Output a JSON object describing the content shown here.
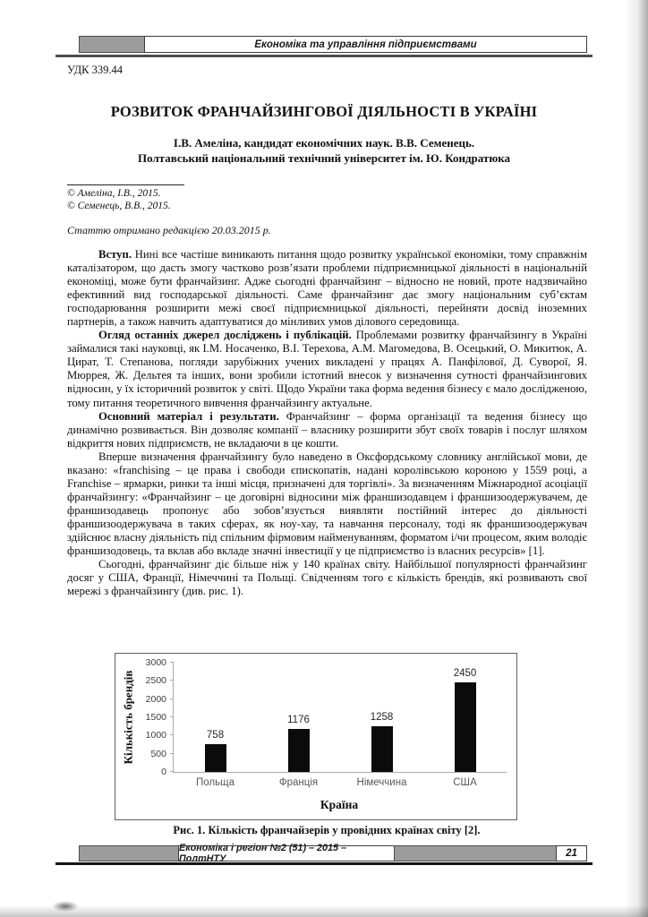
{
  "header": {
    "section": "Економіка та управління підприємствами"
  },
  "udc": "УДК 339.44",
  "title": "РОЗВИТОК ФРАНЧАЙЗИНГОВОЇ ДІЯЛЬНОСТІ В УКРАЇНІ",
  "authors": {
    "line1": "І.В. Амеліна, кандидат економічних наук. В.В. Семенець.",
    "line2": "Полтавський національний технічний університет ім. Ю. Кондратюка"
  },
  "copyright": [
    "© Амеліна, І.В., 2015.",
    "© Семенець, В.В., 2015."
  ],
  "received": "Статтю отримано редакцією 20.03.2015 р.",
  "paragraphs": [
    {
      "lead": "Вступ.",
      "text": " Нині все частіше виникають питання щодо розвитку української економіки, тому справжнім каталізатором, що дасть змогу частково розв’язати проблеми підприємницької діяльності в національній економіці, може бути франчайзинг. Адже сьогодні франчайзинг – відносно не новий, проте надзвичайно ефективний вид господарської діяльності. Саме франчайзинг дає змогу національним суб’єктам господарювання розширити межі своєї підприємницької діяльності, перейняти досвід іноземних партнерів, а також навчить адаптуватися до мінливих умов ділового середовища."
    },
    {
      "lead": "Огляд останніх джерел досліджень і публікацій.",
      "text": " Проблемами розвитку франчайзингу в Україні займалися такі науковці, як І.М. Носаченко, В.І. Терехова, А.М. Магомедова, В. Осецький, О. Микитюк, А. Цират, Т. Степанова, погляди зарубіжних учених викладені у працях А. Панфілової, Д. Суворої, Я. Мюррея, Ж. Дельтея та інших, вони зробили істотний внесок у визначення сутності франчайзингових відносин, у їх історичний розвиток у світі. Щодо України така форма ведення бізнесу є мало дослідженою, тому питання теоретичного вивчення франчайзингу актуальне."
    },
    {
      "lead": "Основний матеріал і результати.",
      "text": " Франчайзинг – форма організації та ведення бізнесу що динамічно розвивається. Він дозволяє компанії – власнику розширити збут своїх товарів і послуг шляхом відкриття нових підприємств, не вкладаючи в це кошти."
    },
    {
      "lead": "",
      "text": "Вперше визначення франчайзингу було наведено в Оксфордському словнику англійської мови, де вказано: «franchising – це права і свободи єпископатів, надані королівською короною у 1559 році, а Franchise – ярмарки, ринки та інші місця, призначені для торгівлі». За визначенням Міжнародної асоціації франчайзингу: «Франчайзинг – це договірні відносини між франшизодавцем і франшизоодержувачем, де франшизодавець пропонує або зобов’язується виявляти постійний інтерес до діяльності франшизоодержувача в таких сферах, як ноу-хау, та навчання персоналу, тоді як франшизоодержувач здійснює власну діяльність під спільним фірмовим найменуванням, форматом і/чи процесом, яким володіє франшизодовець, та вклав або вкладе значні інвестиції у це підприємство із власних ресурсів» [1]."
    },
    {
      "lead": "",
      "text": "Сьогодні, франчайзинг діє більше ніж у 140 країнах світу. Найбільшої популярності франчайзинг досяг у США, Франції, Німеччині та Польщі. Свідченням того є кількість брендів, які розвивають свої мережі з франчайзингу (див. рис. 1)."
    }
  ],
  "chart_data": {
    "type": "bar",
    "categories": [
      "Польща",
      "Франція",
      "Німеччина",
      "США"
    ],
    "values": [
      758,
      1176,
      1258,
      2450
    ],
    "title": "",
    "xlabel": "Країна",
    "ylabel": "Кількість брендів",
    "ylim": [
      0,
      3000
    ],
    "ytick_step": 500,
    "bar_color": "#0b0b0b",
    "data_labels": true,
    "grid": false,
    "legend": false
  },
  "figure_caption": "Рис. 1. Кількість франчайзерів у провідних країнах світу [2].",
  "footer": {
    "journal": "Економіка і регіон №2 (51) – 2015 – ПолтНТУ",
    "page": "21"
  }
}
